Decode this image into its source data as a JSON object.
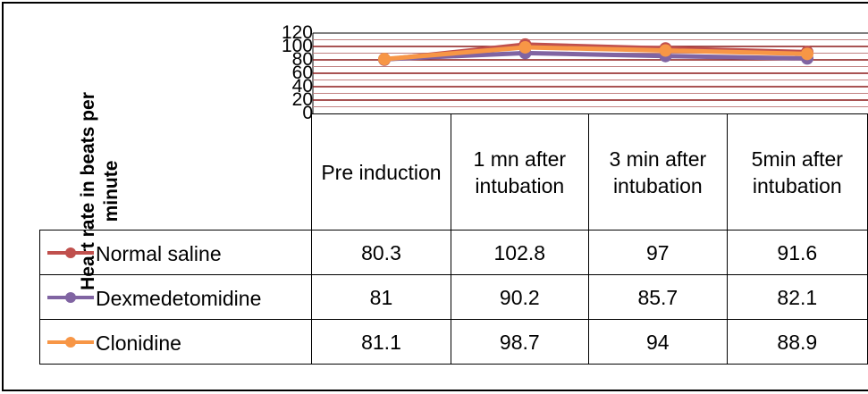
{
  "chart_data": {
    "type": "line",
    "ylabel": "Heart rate in beats per minute",
    "yticks": [
      "120",
      "100",
      "80",
      "60",
      "40",
      "20",
      "0"
    ],
    "ylim": [
      0,
      120
    ],
    "categories": [
      "Pre induction",
      "1 mn after intubation",
      "3 min after intubation",
      "5min after intubation"
    ],
    "series": [
      {
        "name": "Normal saline",
        "color": "#c0504d",
        "values": [
          80.3,
          102.8,
          97,
          91.6
        ]
      },
      {
        "name": "Dexmedetomidine",
        "color": "#8064a2",
        "values": [
          81,
          90.2,
          85.7,
          82.1
        ]
      },
      {
        "name": "Clonidine",
        "color": "#f79646",
        "values": [
          81.1,
          98.7,
          94,
          88.9
        ]
      }
    ],
    "grid": true,
    "legend": "data-table"
  }
}
